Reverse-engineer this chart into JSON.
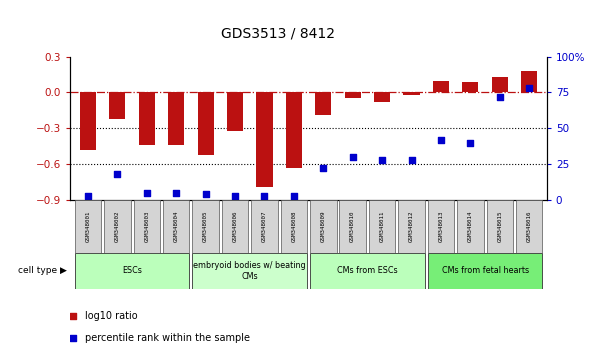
{
  "title": "GDS3513 / 8412",
  "samples": [
    "GSM348001",
    "GSM348002",
    "GSM348003",
    "GSM348004",
    "GSM348005",
    "GSM348006",
    "GSM348007",
    "GSM348008",
    "GSM348009",
    "GSM348010",
    "GSM348011",
    "GSM348012",
    "GSM348013",
    "GSM348014",
    "GSM348015",
    "GSM348016"
  ],
  "log10_ratio": [
    -0.48,
    -0.22,
    -0.44,
    -0.44,
    -0.52,
    -0.32,
    -0.79,
    -0.63,
    -0.19,
    -0.05,
    -0.08,
    -0.02,
    0.1,
    0.09,
    0.13,
    0.18
  ],
  "percentile_rank": [
    3,
    18,
    5,
    5,
    4,
    3,
    3,
    3,
    22,
    30,
    28,
    28,
    42,
    40,
    72,
    78
  ],
  "bar_color": "#bb1111",
  "dot_color": "#0000cc",
  "cell_groups": [
    {
      "label": "ESCs",
      "start": 0,
      "end": 3,
      "color": "#bbffbb"
    },
    {
      "label": "embryoid bodies w/ beating\nCMs",
      "start": 4,
      "end": 7,
      "color": "#ccffcc"
    },
    {
      "label": "CMs from ESCs",
      "start": 8,
      "end": 11,
      "color": "#bbffbb"
    },
    {
      "label": "CMs from fetal hearts",
      "start": 12,
      "end": 15,
      "color": "#77ee77"
    }
  ],
  "ylim_left": [
    -0.9,
    0.3
  ],
  "ylim_right": [
    0,
    100
  ],
  "yticks_left": [
    -0.9,
    -0.6,
    -0.3,
    0.0,
    0.3
  ],
  "yticks_right": [
    0,
    25,
    50,
    75,
    100
  ],
  "ytick_labels_right": [
    "0",
    "25",
    "50",
    "75",
    "100%"
  ],
  "dotted_lines": [
    -0.3,
    -0.6
  ],
  "background_color": "#ffffff",
  "title_fontsize": 10,
  "legend_items": [
    {
      "label": "log10 ratio",
      "color": "#bb1111"
    },
    {
      "label": "percentile rank within the sample",
      "color": "#0000cc"
    }
  ]
}
